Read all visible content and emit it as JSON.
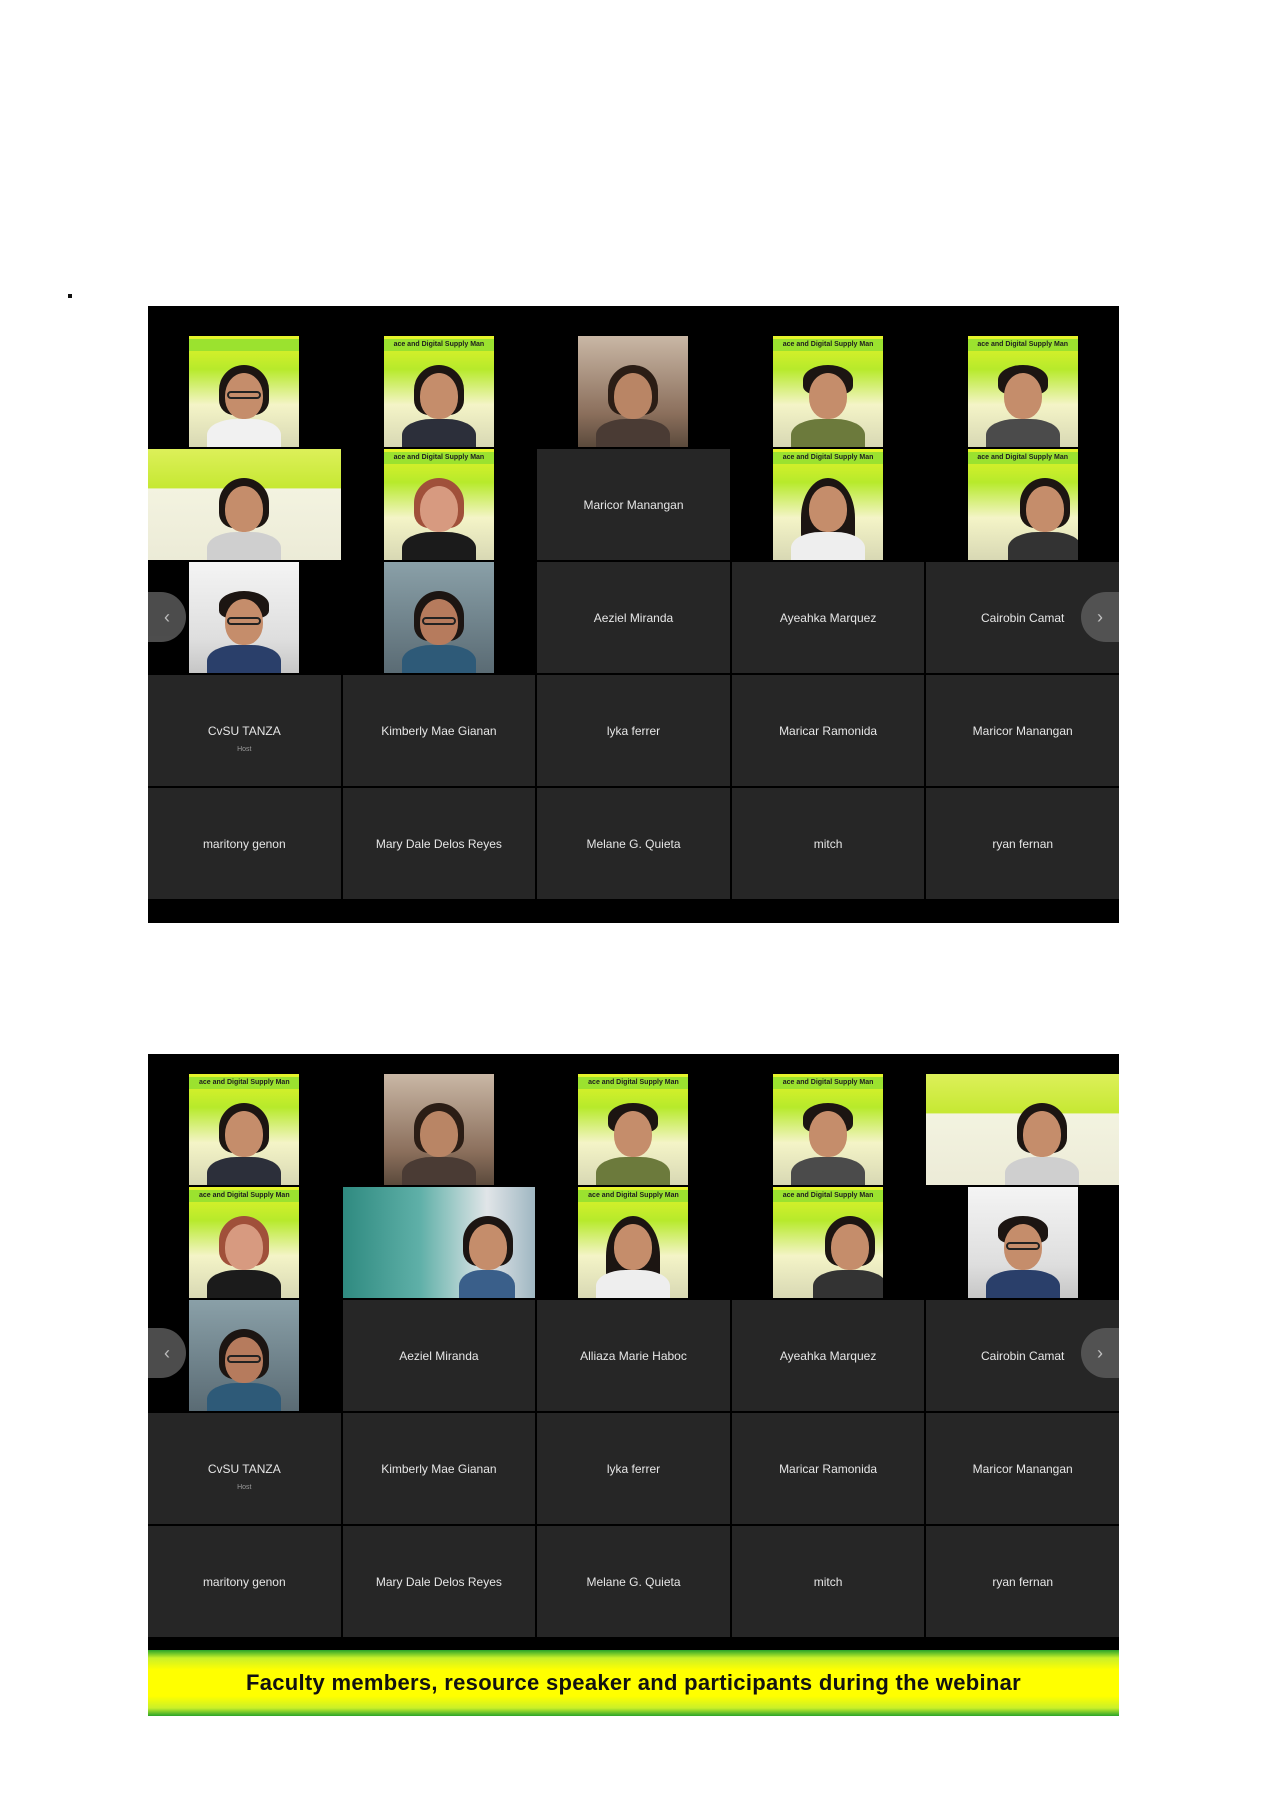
{
  "caption": "Faculty members, resource speaker and participants during the webinar",
  "banner_text": "ace and Digital Supply Man",
  "colors": {
    "caption_bg": "#ffff00",
    "tile_bg": "#262626",
    "banner": "#9be22f"
  },
  "icons": {
    "prev": "chevron-left-icon",
    "next": "chevron-right-icon"
  },
  "screenshot1": {
    "row3": {
      "aeziel": "Aeziel Miranda",
      "ayeahka": "Ayeahka Marquez",
      "cairobin": "Cairobin Camat"
    },
    "r2c3": "Maricor Manangan",
    "row4": [
      "CvSU TANZA",
      "Kimberly Mae Gianan",
      "lyka ferrer",
      "Maricar Ramonida",
      "Maricor Manangan"
    ],
    "host_label": "Host",
    "row5": [
      "maritony genon",
      "Mary Dale Delos Reyes",
      "Melane G. Quieta",
      "mitch",
      "ryan fernan"
    ]
  },
  "screenshot2": {
    "row3": [
      "Aeziel Miranda",
      "Alliaza Marie Haboc",
      "Ayeahka Marquez",
      "Cairobin Camat"
    ],
    "row4": [
      "CvSU TANZA",
      "Kimberly Mae Gianan",
      "lyka ferrer",
      "Maricar Ramonida",
      "Maricor Manangan"
    ],
    "host_label": "Host",
    "row5": [
      "maritony genon",
      "Mary Dale Delos Reyes",
      "Melane G. Quieta",
      "mitch",
      "ryan fernan"
    ]
  }
}
